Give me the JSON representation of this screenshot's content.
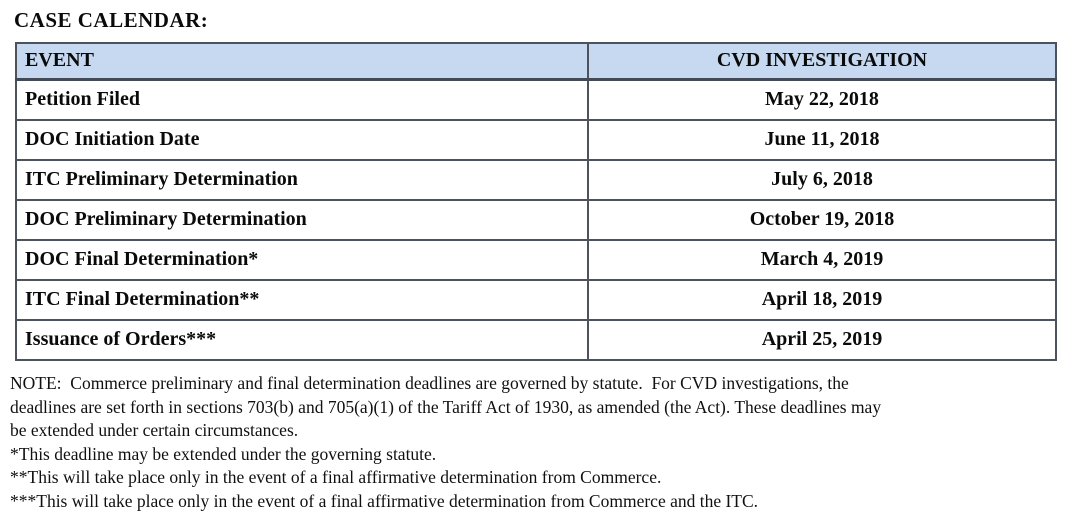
{
  "title": "CASE CALENDAR:",
  "colors": {
    "header_bg": "#c6d9f1",
    "border": "#4d525c",
    "text": "#0a0a0a"
  },
  "table": {
    "header": {
      "event": "EVENT",
      "investigation": "CVD INVESTIGATION"
    },
    "rows": [
      {
        "event": "Petition Filed",
        "date": "May 22, 2018"
      },
      {
        "event": "DOC Initiation Date",
        "date": "June 11, 2018"
      },
      {
        "event": "ITC Preliminary Determination",
        "date": "July 6, 2018"
      },
      {
        "event": "DOC Preliminary Determination",
        "date": "October 19, 2018"
      },
      {
        "event": "DOC Final Determination*",
        "date": "March 4, 2019"
      },
      {
        "event": "ITC Final Determination**",
        "date": "April 18, 2019"
      },
      {
        "event": "Issuance of Orders***",
        "date": "April 25, 2019"
      }
    ]
  },
  "note_lines": [
    "NOTE:  Commerce preliminary and final determination deadlines are governed by statute.  For CVD investigations, the",
    "deadlines are set forth in sections 703(b) and 705(a)(1) of the Tariff Act of 1930, as amended (the Act). These deadlines may",
    "be extended under certain circumstances."
  ],
  "footnotes": [
    "*This deadline may be extended under the governing statute.",
    "**This will take place only in the event of a final affirmative determination from Commerce.",
    "***This will take place only in the event of a final affirmative determination from Commerce and the ITC."
  ]
}
